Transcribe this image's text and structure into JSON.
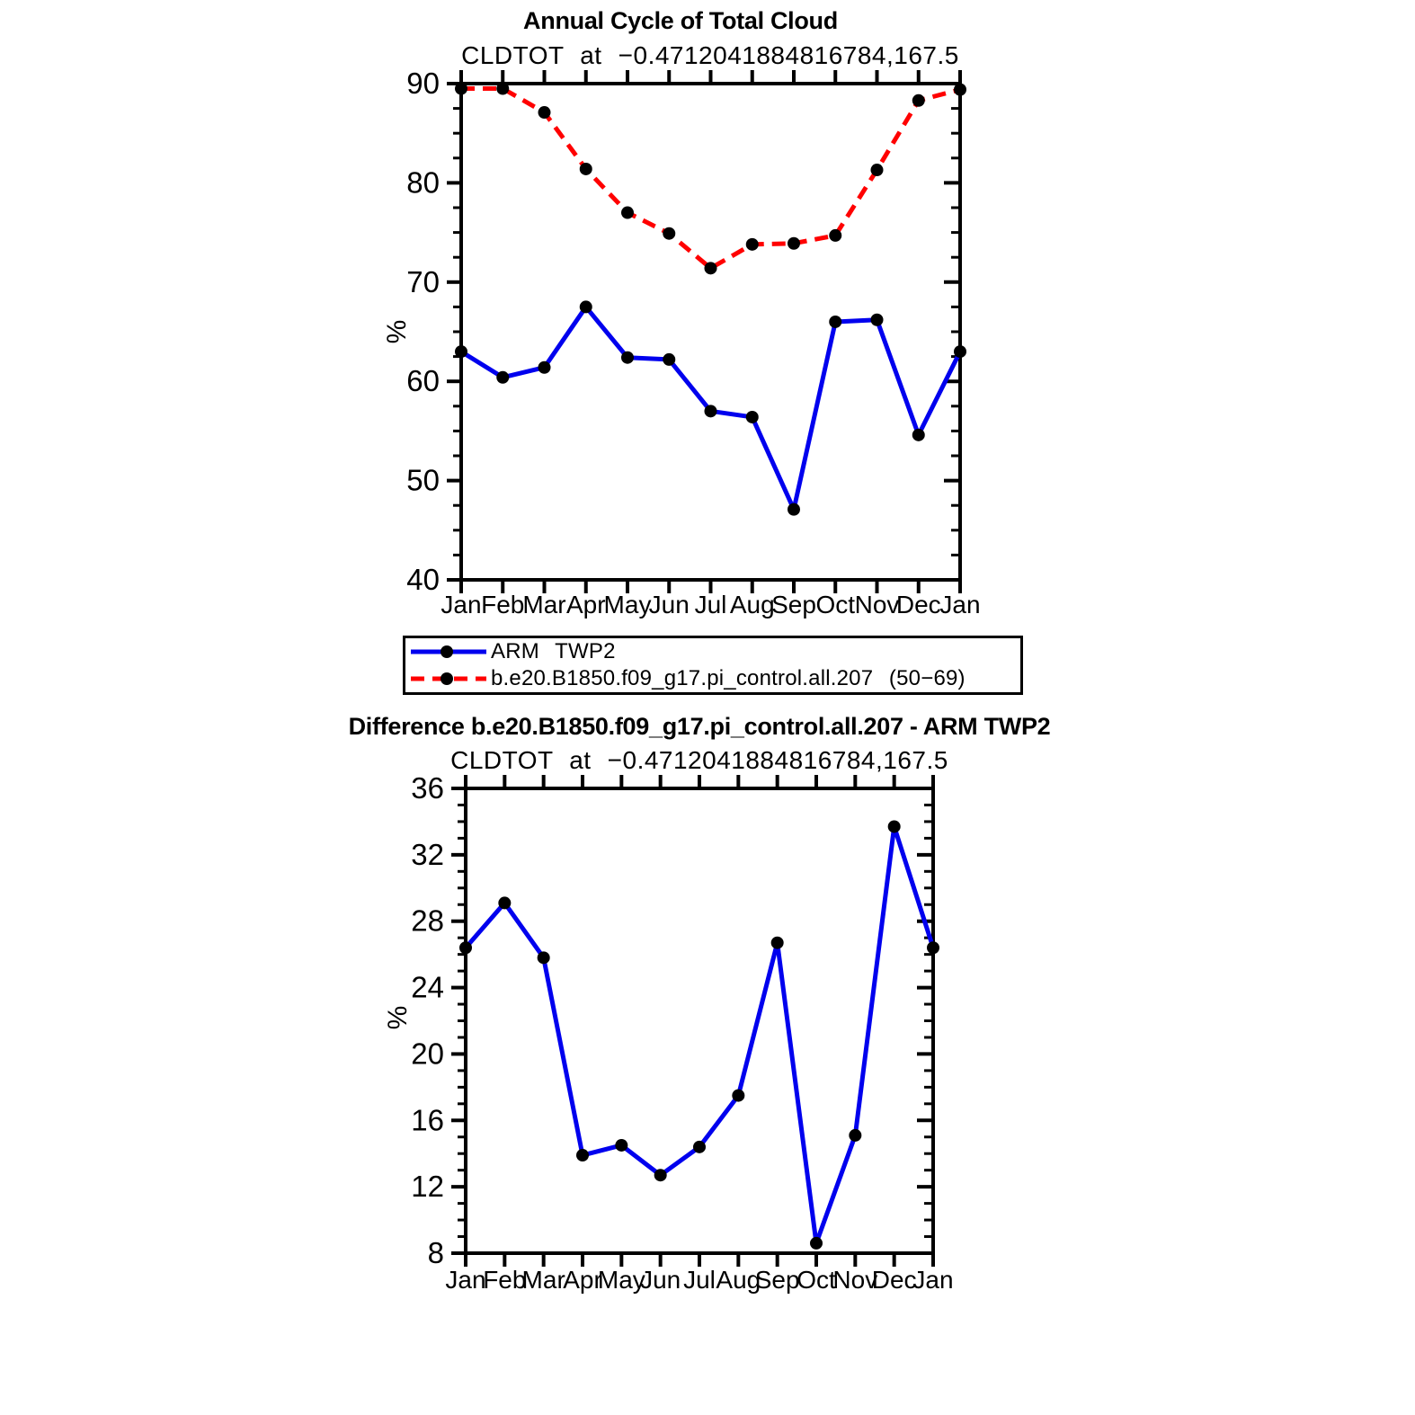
{
  "accent_colors": {
    "series_blue": "#0000ee",
    "series_red": "#ff0000",
    "marker_black": "#000000",
    "axis_black": "#000000"
  },
  "legend": {
    "position": "below-top-chart",
    "border": "#000000"
  },
  "chart_data": [
    {
      "type": "line",
      "title": "Annual Cycle of Total Cloud",
      "subtitle": "CLDTOT at −0.4712041884816784,167.5",
      "xlabel": "",
      "ylabel": "%",
      "categories": [
        "Jan",
        "Feb",
        "Mar",
        "Apr",
        "May",
        "Jun",
        "Jul",
        "Aug",
        "Sep",
        "Oct",
        "Nov",
        "Dec",
        "Jan"
      ],
      "ylim": [
        40,
        90
      ],
      "yticks_major": [
        40,
        50,
        60,
        70,
        80,
        90
      ],
      "ytick_minor_step": 2.5,
      "grid": false,
      "legend_position": "below",
      "series": [
        {
          "name": "ARM TWP2",
          "color": "#0000ee",
          "line_style": "solid",
          "marker": "circle",
          "marker_color": "#000000",
          "values": [
            63.0,
            60.4,
            61.4,
            67.5,
            62.4,
            62.2,
            57.0,
            56.4,
            47.1,
            66.0,
            66.2,
            54.6,
            63.0
          ]
        },
        {
          "name": "b.e20.B1850.f09_g17.pi_control.all.207 (50−69)",
          "color": "#ff0000",
          "line_style": "dashed",
          "marker": "circle",
          "marker_color": "#000000",
          "values": [
            89.5,
            89.5,
            87.1,
            81.4,
            77.0,
            74.9,
            71.4,
            73.8,
            73.9,
            74.7,
            81.3,
            88.3,
            89.4
          ]
        }
      ]
    },
    {
      "type": "line",
      "title": "Difference b.e20.B1850.f09_g17.pi_control.all.207 - ARM TWP2",
      "subtitle": "CLDTOT at −0.4712041884816784,167.5",
      "xlabel": "",
      "ylabel": "%",
      "categories": [
        "Jan",
        "Feb",
        "Mar",
        "Apr",
        "May",
        "Jun",
        "Jul",
        "Aug",
        "Sep",
        "Oct",
        "Nov",
        "Dec",
        "Jan"
      ],
      "ylim": [
        8,
        36
      ],
      "yticks_major": [
        8,
        12,
        16,
        20,
        24,
        28,
        32,
        36
      ],
      "ytick_minor_step": 1,
      "grid": false,
      "legend_position": "none",
      "series": [
        {
          "name": "Difference b.e20.B1850.f09_g17.pi_control.all.207 - ARM TWP2",
          "color": "#0000ee",
          "line_style": "solid",
          "marker": "circle",
          "marker_color": "#000000",
          "values": [
            26.4,
            29.1,
            25.8,
            13.9,
            14.5,
            12.7,
            14.4,
            17.5,
            26.7,
            8.6,
            15.1,
            33.7,
            26.4
          ]
        }
      ]
    }
  ]
}
